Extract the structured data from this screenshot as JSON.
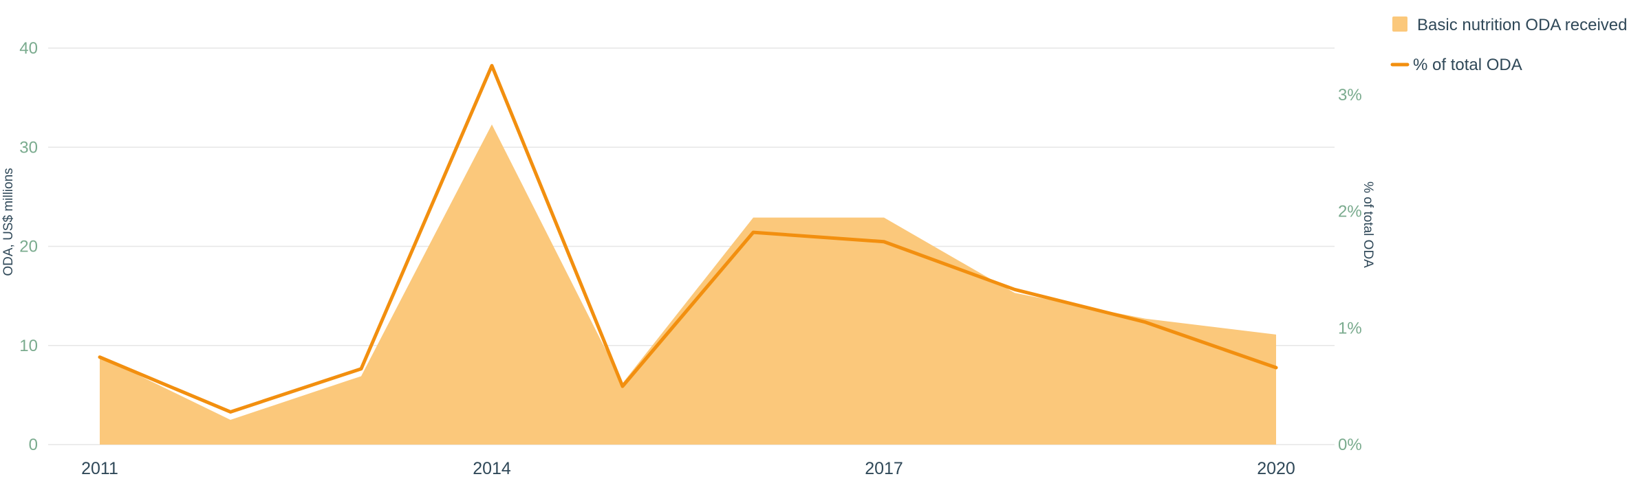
{
  "chart_data": {
    "type": "area+line",
    "x": [
      2011,
      2012,
      2013,
      2014,
      2015,
      2016,
      2017,
      2018,
      2019,
      2020
    ],
    "x_tick_labels": [
      "2011",
      "2014",
      "2017",
      "2020"
    ],
    "series": [
      {
        "name": "Basic nutrition ODA received",
        "type": "area",
        "axis": "left",
        "values": [
          8.9,
          2.5,
          6.9,
          32.3,
          6.2,
          22.9,
          22.9,
          15.3,
          12.7,
          11.1
        ]
      },
      {
        "name": "% of total ODA",
        "type": "line",
        "axis": "right",
        "values": [
          0.75,
          0.28,
          0.65,
          3.25,
          0.5,
          1.82,
          1.74,
          1.33,
          1.05,
          0.66
        ]
      }
    ],
    "ylabel_left": "ODA, US$ millions",
    "ylabel_right": "% of total ODA",
    "ylim_left": [
      0,
      40
    ],
    "ylim_right": [
      0,
      3.2
    ],
    "y_ticks_left": [
      "0",
      "10",
      "20",
      "30",
      "40"
    ],
    "y_ticks_right": [
      "0%",
      "1%",
      "2%",
      "3%"
    ],
    "grid": true,
    "legend_position": "top-right",
    "colors": {
      "area": "#fbc87b",
      "line": "#f28f0f",
      "grid": "#e6e6e6",
      "tick": "#7aab8e",
      "text": "#2f4858"
    }
  }
}
